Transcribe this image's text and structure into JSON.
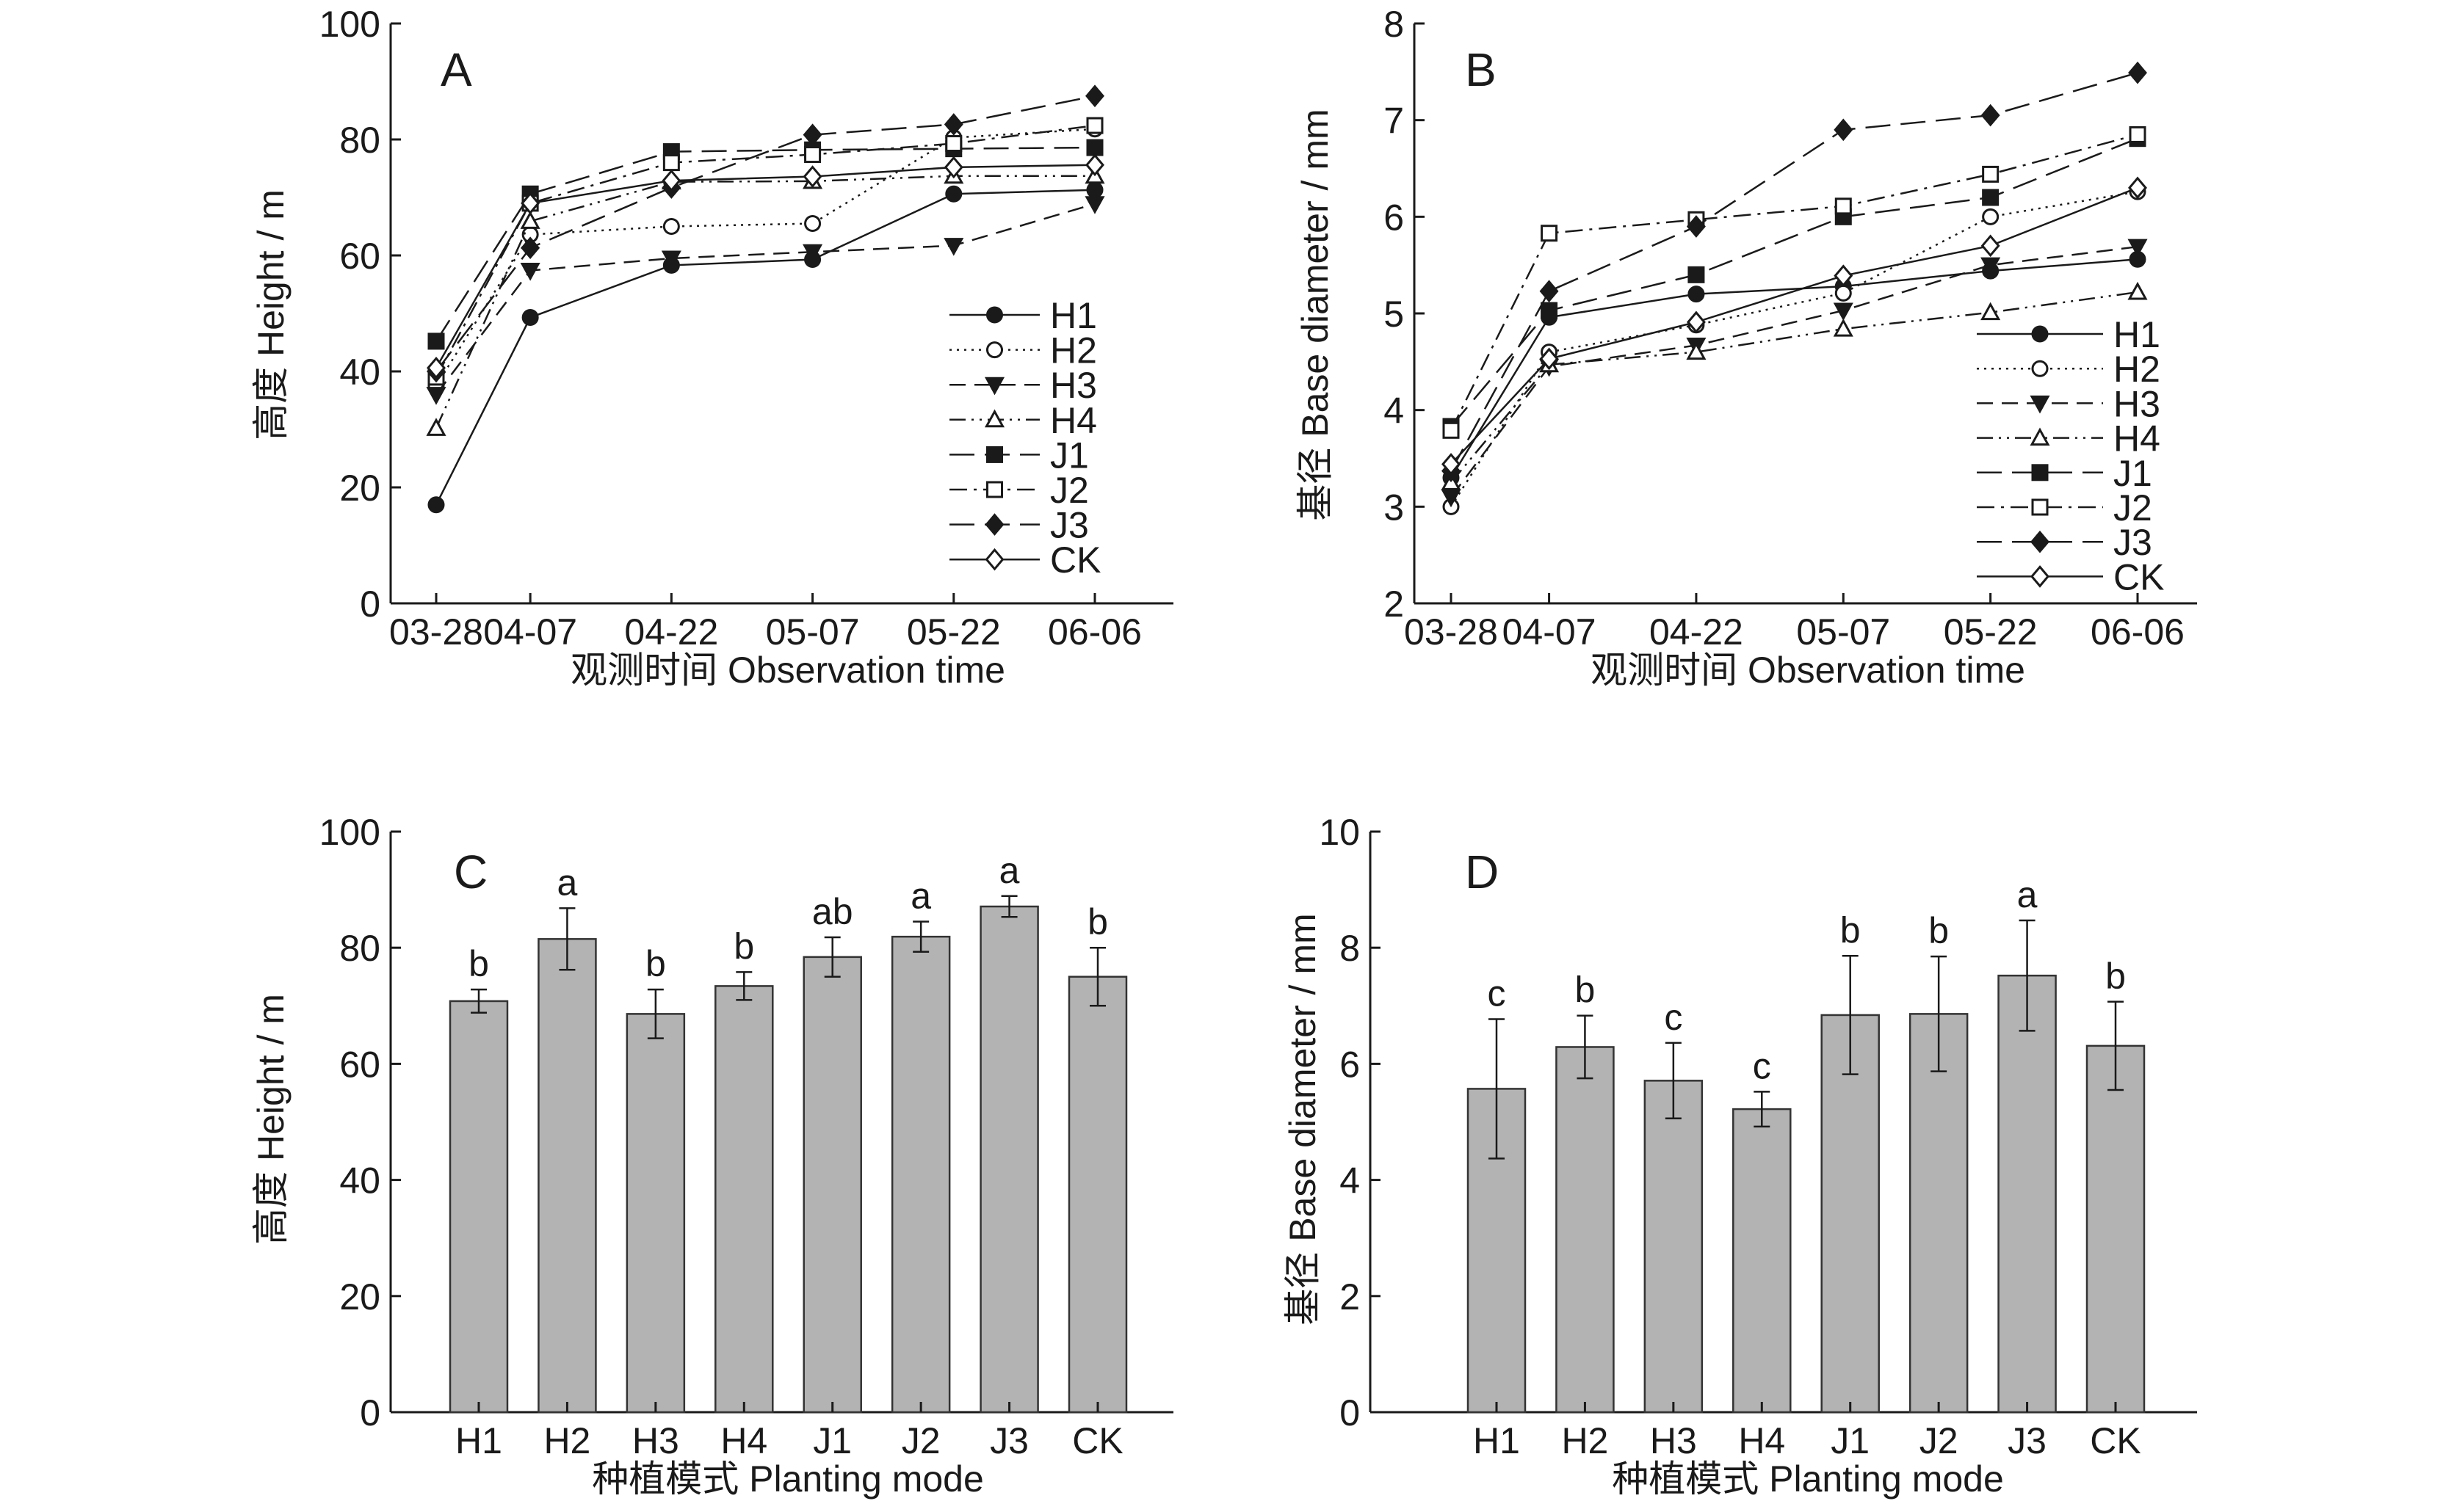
{
  "chart_data": [
    {
      "panel": "A",
      "type": "line",
      "xlabel": "观测时间 Observation time",
      "ylabel": "高度 Height / m",
      "x": [
        "03-28",
        "04-07",
        "04-22",
        "05-07",
        "05-22",
        "06-06"
      ],
      "x_ticks": [
        "03-28",
        "04-07",
        "04-22",
        "05-07",
        "05-22",
        "06-06"
      ],
      "ylim": [
        0,
        100
      ],
      "y_ticks": [
        0,
        20,
        40,
        60,
        80,
        100
      ],
      "legend_position": "right",
      "series": [
        {
          "name": "H1",
          "marker": "circle-filled",
          "line": "solid",
          "values": [
            17,
            49.3,
            58.3,
            59.3,
            70.6,
            71.3
          ]
        },
        {
          "name": "H2",
          "marker": "circle-open",
          "line": "dotted",
          "values": [
            37.5,
            63.6,
            65,
            65.5,
            80.3,
            81.8
          ]
        },
        {
          "name": "H3",
          "marker": "triangle-down-filled",
          "line": "dashed",
          "values": [
            36,
            57.4,
            59.5,
            60.6,
            61.7,
            68.9
          ]
        },
        {
          "name": "H4",
          "marker": "triangle-up-open",
          "line": "dash-dot-dot",
          "values": [
            30.2,
            65.9,
            72.7,
            72.8,
            73.7,
            73.7
          ]
        },
        {
          "name": "J1",
          "marker": "square-filled",
          "line": "long-dash",
          "values": [
            45.2,
            70.6,
            77.9,
            78.2,
            78.4,
            78.6
          ]
        },
        {
          "name": "J2",
          "marker": "square-open",
          "line": "dash-dot",
          "values": [
            39,
            69,
            76,
            77.4,
            79.3,
            82.4
          ]
        },
        {
          "name": "J3",
          "marker": "diamond-filled",
          "line": "long-dash",
          "values": [
            40,
            61.3,
            71.7,
            80.8,
            82.6,
            87.5
          ]
        },
        {
          "name": "CK",
          "marker": "diamond-open",
          "line": "solid",
          "values": [
            40.6,
            69,
            72.9,
            73.6,
            75.2,
            75.6
          ]
        }
      ]
    },
    {
      "panel": "B",
      "type": "line",
      "xlabel": "观测时间 Observation time",
      "ylabel": "基径 Base diameter / mm",
      "x": [
        "03-28",
        "04-07",
        "04-22",
        "05-07",
        "05-22",
        "06-06"
      ],
      "x_ticks": [
        "03-28",
        "04-07",
        "04-22",
        "05-07",
        "05-22",
        "06-06"
      ],
      "ylim": [
        2,
        8
      ],
      "y_ticks": [
        2,
        3,
        4,
        5,
        6,
        7,
        8
      ],
      "legend_position": "bottom-right",
      "series": [
        {
          "name": "H1",
          "marker": "circle-filled",
          "line": "solid",
          "values": [
            3.3,
            4.96,
            5.2,
            5.28,
            5.44,
            5.56
          ]
        },
        {
          "name": "H2",
          "marker": "circle-open",
          "line": "dotted",
          "values": [
            3.0,
            4.6,
            4.88,
            5.21,
            6.0,
            6.26
          ]
        },
        {
          "name": "H3",
          "marker": "triangle-down-filled",
          "line": "dashed",
          "values": [
            3.1,
            4.45,
            4.67,
            5.03,
            5.5,
            5.69
          ]
        },
        {
          "name": "H4",
          "marker": "triangle-up-open",
          "line": "dash-dot-dot",
          "values": [
            3.25,
            4.47,
            4.6,
            4.84,
            5.01,
            5.22
          ]
        },
        {
          "name": "J1",
          "marker": "square-filled",
          "line": "long-dash",
          "values": [
            3.83,
            5.03,
            5.4,
            6.0,
            6.2,
            6.81
          ]
        },
        {
          "name": "J2",
          "marker": "square-open",
          "line": "dash-dot",
          "values": [
            3.79,
            5.83,
            5.97,
            6.11,
            6.44,
            6.85
          ]
        },
        {
          "name": "J3",
          "marker": "diamond-filled",
          "line": "long-dash",
          "values": [
            3.37,
            5.23,
            5.9,
            6.9,
            7.05,
            7.49
          ]
        },
        {
          "name": "CK",
          "marker": "diamond-open",
          "line": "solid",
          "values": [
            3.44,
            4.53,
            4.91,
            5.39,
            5.7,
            6.3
          ]
        }
      ]
    },
    {
      "panel": "C",
      "type": "bar",
      "xlabel": "种植模式 Planting mode",
      "ylabel": "高度 Height / m",
      "categories": [
        "H1",
        "H2",
        "H3",
        "H4",
        "J1",
        "J2",
        "J3",
        "CK"
      ],
      "values": [
        70.8,
        81.5,
        68.6,
        73.4,
        78.4,
        81.9,
        87.1,
        75.0
      ],
      "errors": [
        2.0,
        5.3,
        4.2,
        2.4,
        3.4,
        2.6,
        1.8,
        5.0
      ],
      "significance": [
        "b",
        "a",
        "b",
        "b",
        "ab",
        "a",
        "a",
        "b"
      ],
      "ylim": [
        0,
        100
      ],
      "y_ticks": [
        0,
        20,
        40,
        60,
        80,
        100
      ],
      "bar_color": "#b3b3b3"
    },
    {
      "panel": "D",
      "type": "bar",
      "xlabel": "种植模式 Planting mode",
      "ylabel": "基径 Base diameter / mm",
      "categories": [
        "H1",
        "H2",
        "H3",
        "H4",
        "J1",
        "J2",
        "J3",
        "CK"
      ],
      "values": [
        5.57,
        6.29,
        5.71,
        5.22,
        6.84,
        6.86,
        7.52,
        6.31
      ],
      "errors": [
        1.2,
        0.54,
        0.65,
        0.3,
        1.02,
        0.99,
        0.95,
        0.76
      ],
      "significance": [
        "c",
        "b",
        "c",
        "c",
        "b",
        "b",
        "a",
        "b"
      ],
      "ylim": [
        0,
        10
      ],
      "y_ticks": [
        0,
        2,
        4,
        6,
        8,
        10
      ],
      "bar_color": "#b3b3b3"
    }
  ]
}
